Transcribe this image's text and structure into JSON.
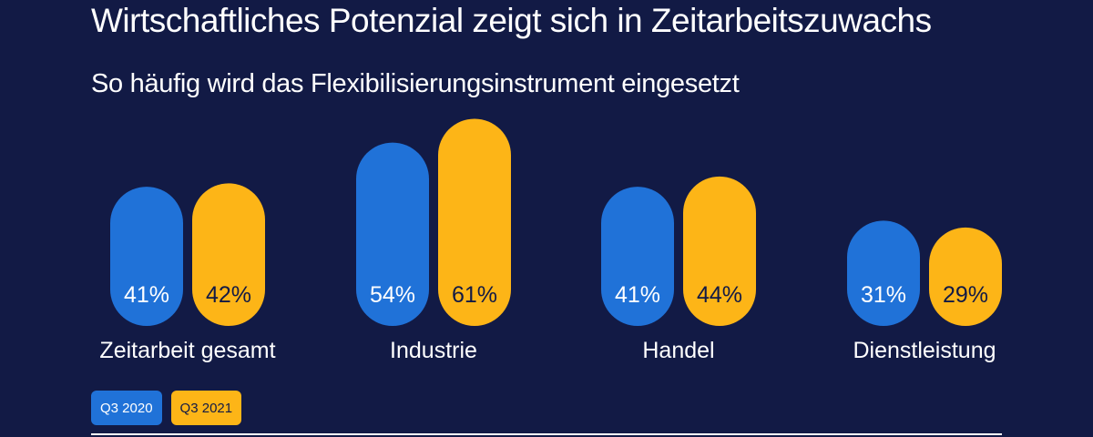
{
  "header": {
    "title": "Wirtschaftliches Potenzial zeigt sich in Zeitarbeitszuwachs",
    "subtitle": "So häufig wird das Flexibilisierungsinstrument eingesetzt"
  },
  "colors": {
    "background": "#121a45",
    "series_2020": "#2072d8",
    "series_2021": "#fdb517",
    "text_light": "#ffffff",
    "text_dark": "#121a45"
  },
  "chart_data": {
    "type": "bar",
    "title": "Wirtschaftliches Potenzial zeigt sich in Zeitarbeitszuwachs",
    "subtitle": "So häufig wird das Flexibilisierungsinstrument eingesetzt",
    "categories": [
      "Zeitarbeit gesamt",
      "Industrie",
      "Handel",
      "Dienstleistung"
    ],
    "series": [
      {
        "name": "Q3 2020",
        "values": [
          41,
          54,
          41,
          31
        ],
        "labels": [
          "41%",
          "54%",
          "41%",
          "31%"
        ]
      },
      {
        "name": "Q3 2021",
        "values": [
          42,
          61,
          44,
          29
        ],
        "labels": [
          "42%",
          "61%",
          "44%",
          "29%"
        ]
      }
    ],
    "xlabel": "",
    "ylabel": "",
    "unit": "%",
    "grid": false,
    "legend_position": "bottom-left"
  }
}
